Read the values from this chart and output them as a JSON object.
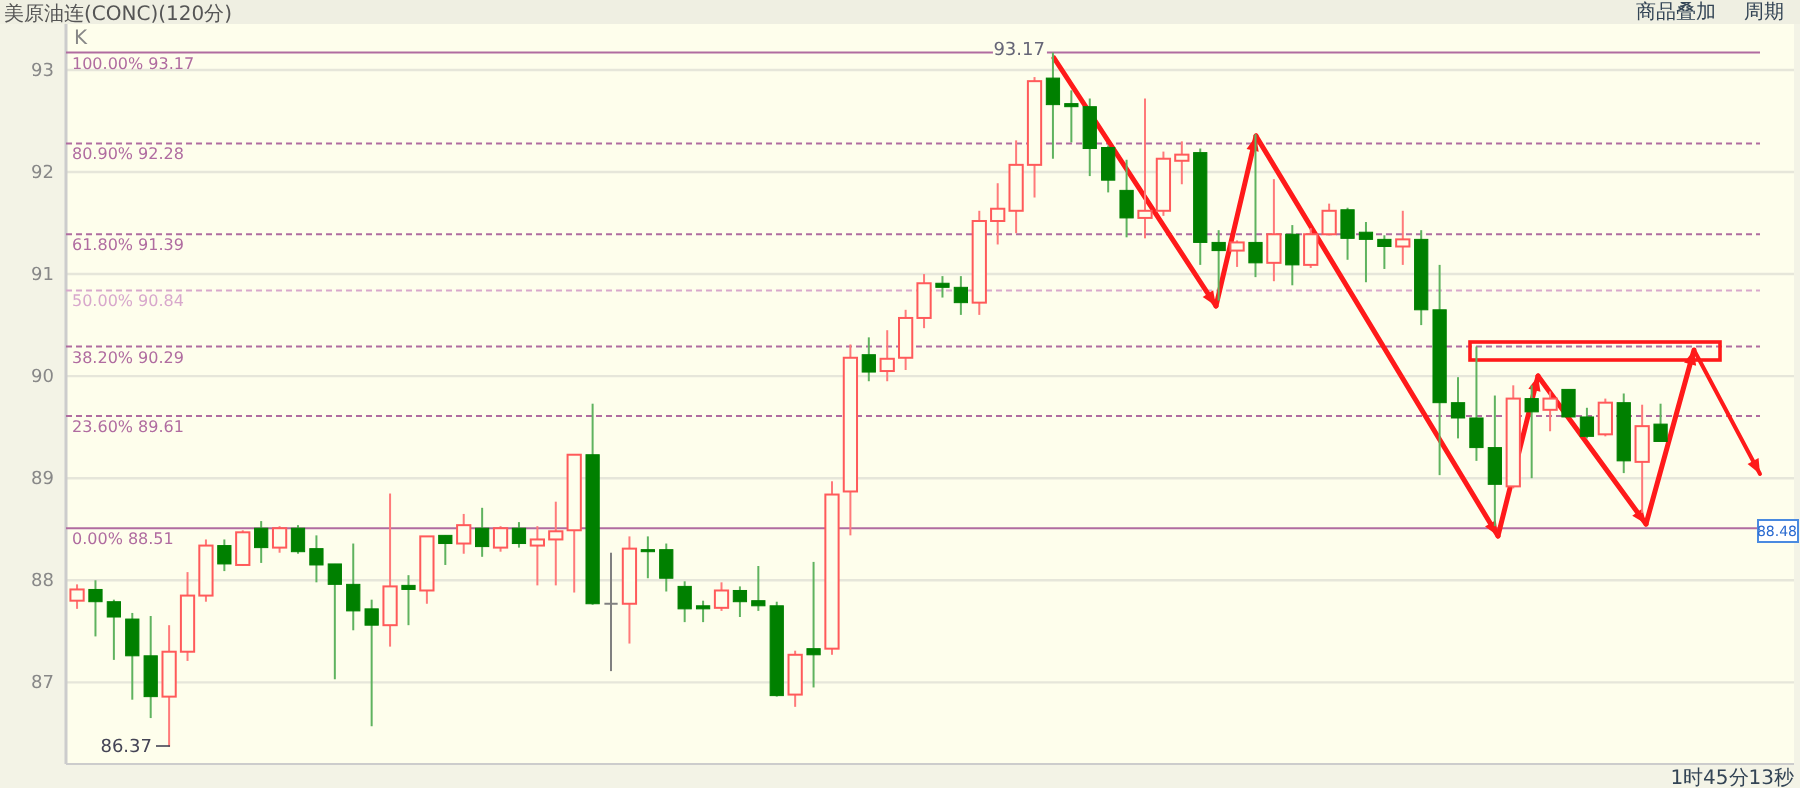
{
  "chart_data": {
    "type": "candlestick",
    "title": "美原油连(CONC)(120分)",
    "categories": [
      null,
      null,
      null,
      null,
      null,
      null,
      null,
      null,
      null,
      null,
      null,
      null,
      null,
      null,
      null,
      null,
      null,
      null,
      null,
      null,
      null,
      null,
      null,
      null,
      null,
      null,
      null,
      null,
      null,
      null,
      null,
      null,
      null,
      null,
      null,
      null,
      null,
      null,
      null,
      null,
      null,
      null,
      null,
      null,
      null,
      null,
      null,
      null,
      null,
      null,
      null,
      null,
      null,
      null,
      null,
      null,
      null,
      null,
      null,
      null,
      null,
      null,
      null,
      null,
      null,
      null,
      null,
      null,
      null,
      null,
      null,
      null,
      null,
      null,
      null,
      null,
      null,
      null,
      null,
      null,
      null,
      null,
      null,
      null,
      null,
      null,
      null
    ],
    "ohlc": [
      [
        87.8,
        87.96,
        87.72,
        87.91
      ],
      [
        87.91,
        88.0,
        87.45,
        87.79
      ],
      [
        87.79,
        87.81,
        87.22,
        87.64
      ],
      [
        87.62,
        87.68,
        86.83,
        87.26
      ],
      [
        87.26,
        87.65,
        86.65,
        86.86
      ],
      [
        86.86,
        87.56,
        86.37,
        87.3
      ],
      [
        87.3,
        88.08,
        87.21,
        87.85
      ],
      [
        87.85,
        88.4,
        87.79,
        88.34
      ],
      [
        88.34,
        88.4,
        88.09,
        88.16
      ],
      [
        88.15,
        88.49,
        88.14,
        88.47
      ],
      [
        88.51,
        88.58,
        88.17,
        88.32
      ],
      [
        88.32,
        88.53,
        88.27,
        88.51
      ],
      [
        88.51,
        88.54,
        88.26,
        88.28
      ],
      [
        88.31,
        88.44,
        87.98,
        88.15
      ],
      [
        88.16,
        88.16,
        87.03,
        87.96
      ],
      [
        87.96,
        88.36,
        87.51,
        87.7
      ],
      [
        87.72,
        87.81,
        86.57,
        87.56
      ],
      [
        87.56,
        88.85,
        87.35,
        87.94
      ],
      [
        87.95,
        88.05,
        87.56,
        87.91
      ],
      [
        87.9,
        88.43,
        87.77,
        88.43
      ],
      [
        88.44,
        88.44,
        88.15,
        88.36
      ],
      [
        88.36,
        88.65,
        88.26,
        88.54
      ],
      [
        88.51,
        88.71,
        88.23,
        88.33
      ],
      [
        88.32,
        88.53,
        88.28,
        88.51
      ],
      [
        88.51,
        88.57,
        88.32,
        88.36
      ],
      [
        88.34,
        88.53,
        87.95,
        88.4
      ],
      [
        88.4,
        88.77,
        87.95,
        88.48
      ],
      [
        88.49,
        89.23,
        87.88,
        89.23
      ],
      [
        89.23,
        89.73,
        87.76,
        87.77
      ],
      [
        87.77,
        88.27,
        87.11,
        87.77
      ],
      [
        87.77,
        88.43,
        87.38,
        88.31
      ],
      [
        88.3,
        88.43,
        88.02,
        88.28
      ],
      [
        88.3,
        88.36,
        87.89,
        88.02
      ],
      [
        87.94,
        87.99,
        87.59,
        87.72
      ],
      [
        87.75,
        87.8,
        87.59,
        87.72
      ],
      [
        87.73,
        87.98,
        87.7,
        87.9
      ],
      [
        87.9,
        87.94,
        87.64,
        87.79
      ],
      [
        87.8,
        88.14,
        87.7,
        87.75
      ],
      [
        87.75,
        87.79,
        86.86,
        86.87
      ],
      [
        86.88,
        87.31,
        86.76,
        87.27
      ],
      [
        87.33,
        88.18,
        86.95,
        87.27
      ],
      [
        87.33,
        88.97,
        87.27,
        88.84
      ],
      [
        88.87,
        90.31,
        88.44,
        90.18
      ],
      [
        90.21,
        90.38,
        89.95,
        90.04
      ],
      [
        90.05,
        90.45,
        89.95,
        90.17
      ],
      [
        90.18,
        90.65,
        90.06,
        90.57
      ],
      [
        90.57,
        91.0,
        90.47,
        90.91
      ],
      [
        90.91,
        90.98,
        90.77,
        90.87
      ],
      [
        90.87,
        90.98,
        90.6,
        90.72
      ],
      [
        90.72,
        91.62,
        90.6,
        91.52
      ],
      [
        91.52,
        91.89,
        91.29,
        91.64
      ],
      [
        91.62,
        92.31,
        91.4,
        92.07
      ],
      [
        92.07,
        92.93,
        91.75,
        92.89
      ],
      [
        92.92,
        93.17,
        92.13,
        92.66
      ],
      [
        92.67,
        92.8,
        92.29,
        92.64
      ],
      [
        92.64,
        92.72,
        91.96,
        92.23
      ],
      [
        92.24,
        92.26,
        91.8,
        91.92
      ],
      [
        91.82,
        92.12,
        91.36,
        91.55
      ],
      [
        91.55,
        92.72,
        91.35,
        91.62
      ],
      [
        91.62,
        92.2,
        91.57,
        92.13
      ],
      [
        92.11,
        92.3,
        91.88,
        92.17
      ],
      [
        92.19,
        92.23,
        91.09,
        91.31
      ],
      [
        91.31,
        91.43,
        90.74,
        91.23
      ],
      [
        91.23,
        91.33,
        91.07,
        91.31
      ],
      [
        91.31,
        92.37,
        90.97,
        91.11
      ],
      [
        91.11,
        91.93,
        90.93,
        91.39
      ],
      [
        91.39,
        91.48,
        90.89,
        91.09
      ],
      [
        91.09,
        91.45,
        91.06,
        91.39
      ],
      [
        91.39,
        91.69,
        91.38,
        91.62
      ],
      [
        91.63,
        91.65,
        91.14,
        91.35
      ],
      [
        91.41,
        91.51,
        90.92,
        91.34
      ],
      [
        91.34,
        91.38,
        91.05,
        91.27
      ],
      [
        91.27,
        91.62,
        91.09,
        91.34
      ],
      [
        91.34,
        91.43,
        90.5,
        90.65
      ],
      [
        90.65,
        91.09,
        89.03,
        89.74
      ],
      [
        89.74,
        89.99,
        89.39,
        89.59
      ],
      [
        89.59,
        90.29,
        89.17,
        89.3
      ],
      [
        89.3,
        89.81,
        88.53,
        88.94
      ],
      [
        88.92,
        89.91,
        88.9,
        89.78
      ],
      [
        89.78,
        89.91,
        89.0,
        89.65
      ],
      [
        89.67,
        89.85,
        89.46,
        89.78
      ],
      [
        89.87,
        89.87,
        89.6,
        89.6
      ],
      [
        89.6,
        89.69,
        89.39,
        89.41
      ],
      [
        89.43,
        89.78,
        89.41,
        89.74
      ],
      [
        89.74,
        89.83,
        89.05,
        89.17
      ],
      [
        89.16,
        89.72,
        88.66,
        89.51
      ],
      [
        89.53,
        89.73,
        89.36,
        89.36
      ]
    ],
    "ylim": [
      86.2,
      93.45
    ],
    "yticks": [
      87,
      88,
      89,
      90,
      91,
      92,
      93
    ],
    "grid": "y",
    "tick_labels": "y",
    "ref_lines": [
      {
        "axis": "y",
        "value": 93.17,
        "label": "100.00% 93.17",
        "color": "#b06ca0",
        "line_style": "solid"
      },
      {
        "axis": "y",
        "value": 92.28,
        "label": "80.90% 92.28",
        "color": "#b06ca0",
        "line_style": "dashed"
      },
      {
        "axis": "y",
        "value": 91.39,
        "label": "61.80% 91.39",
        "color": "#b06ca0",
        "line_style": "dashed"
      },
      {
        "axis": "y",
        "value": 90.84,
        "label": "50.00% 90.84",
        "color": "#d8a8cc",
        "line_style": "dashed"
      },
      {
        "axis": "y",
        "value": 90.29,
        "label": "38.20% 90.29",
        "color": "#b06ca0",
        "line_style": "dashed"
      },
      {
        "axis": "y",
        "value": 89.61,
        "label": "23.60% 89.61",
        "color": "#b06ca0",
        "line_style": "dashed"
      },
      {
        "axis": "y",
        "value": 88.51,
        "label": "0.00% 88.51",
        "color": "#b06ca0",
        "line_style": "solid"
      }
    ],
    "annotations": [
      "K",
      "商品叠加",
      "周期",
      "1时45分13秒",
      {
        "text": "93.17",
        "y": 93.17
      },
      "86.37",
      "88.48"
    ]
  }
}
